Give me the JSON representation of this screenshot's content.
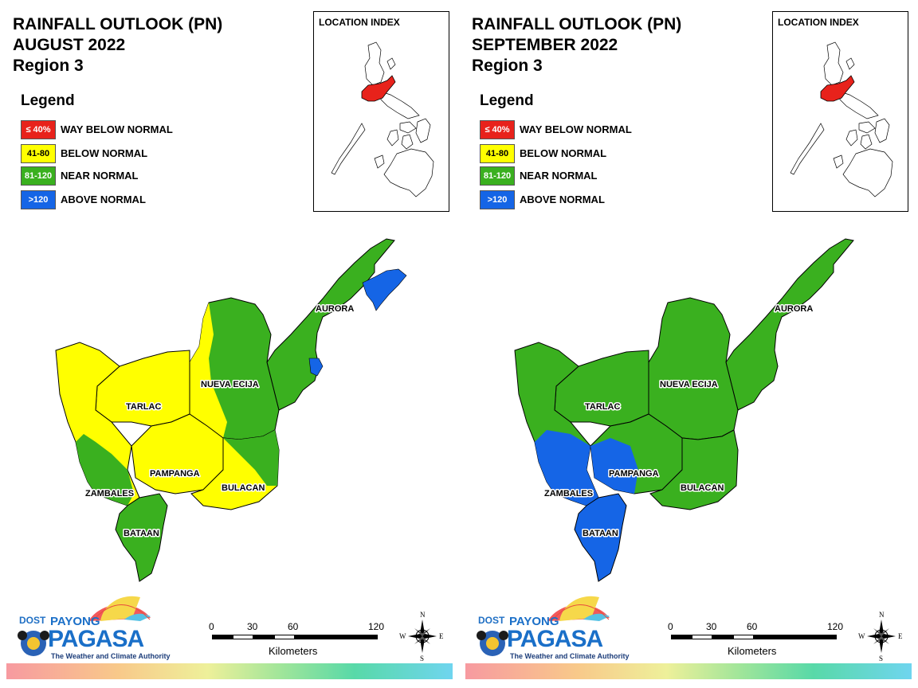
{
  "panels": [
    {
      "title_line1": "RAINFALL OUTLOOK (PN)",
      "title_line2": "AUGUST 2022",
      "title_line3": "Region 3",
      "legend_title": "Legend",
      "legend": [
        {
          "code": "≤ 40%",
          "label": "WAY BELOW NORMAL",
          "color": "#e8221b"
        },
        {
          "code": "41-80",
          "label": "BELOW NORMAL",
          "color": "#ffff00"
        },
        {
          "code": "81-120",
          "label": "NEAR NORMAL",
          "color": "#3ab01f"
        },
        {
          "code": ">120",
          "label": "ABOVE NORMAL",
          "color": "#1565e6"
        }
      ],
      "location_index_title": "LOCATION INDEX",
      "provinces": {
        "aurora": "AURORA",
        "nueva_ecija": "NUEVA ECIJA",
        "tarlac": "TARLAC",
        "pampanga": "PAMPANGA",
        "bulacan": "BULACAN",
        "zambales": "ZAMBALES",
        "bataan": "BATAAN"
      },
      "scale": {
        "ticks": [
          "0",
          "30",
          "60",
          "120"
        ],
        "unit": "Kilometers"
      },
      "compass": {
        "n": "N",
        "s": "S",
        "e": "E",
        "w": "W"
      },
      "logo": {
        "dost": "DOST",
        "payong": "PAYONG",
        "pagasa": "PAGASA",
        "tagline": "The Weather and Climate Authority"
      }
    },
    {
      "title_line1": "RAINFALL OUTLOOK (PN)",
      "title_line2": "SEPTEMBER 2022",
      "title_line3": "Region 3",
      "legend_title": "Legend",
      "legend": [
        {
          "code": "≤ 40%",
          "label": "WAY BELOW NORMAL",
          "color": "#e8221b"
        },
        {
          "code": "41-80",
          "label": "BELOW NORMAL",
          "color": "#ffff00"
        },
        {
          "code": "81-120",
          "label": "NEAR NORMAL",
          "color": "#3ab01f"
        },
        {
          "code": ">120",
          "label": "ABOVE NORMAL",
          "color": "#1565e6"
        }
      ],
      "location_index_title": "LOCATION INDEX",
      "provinces": {
        "aurora": "AURORA",
        "nueva_ecija": "NUEVA ECIJA",
        "tarlac": "TARLAC",
        "pampanga": "PAMPANGA",
        "bulacan": "BULACAN",
        "zambales": "ZAMBALES",
        "bataan": "BATAAN"
      },
      "scale": {
        "ticks": [
          "0",
          "30",
          "60",
          "120"
        ],
        "unit": "Kilometers"
      },
      "compass": {
        "n": "N",
        "s": "S",
        "e": "E",
        "w": "W"
      },
      "logo": {
        "dost": "DOST",
        "payong": "PAYONG",
        "pagasa": "PAGASA",
        "tagline": "The Weather and Climate Authority"
      }
    }
  ],
  "colors": {
    "way_below": "#e8221b",
    "below": "#ffff00",
    "near": "#3ab01f",
    "above": "#1565e6"
  }
}
